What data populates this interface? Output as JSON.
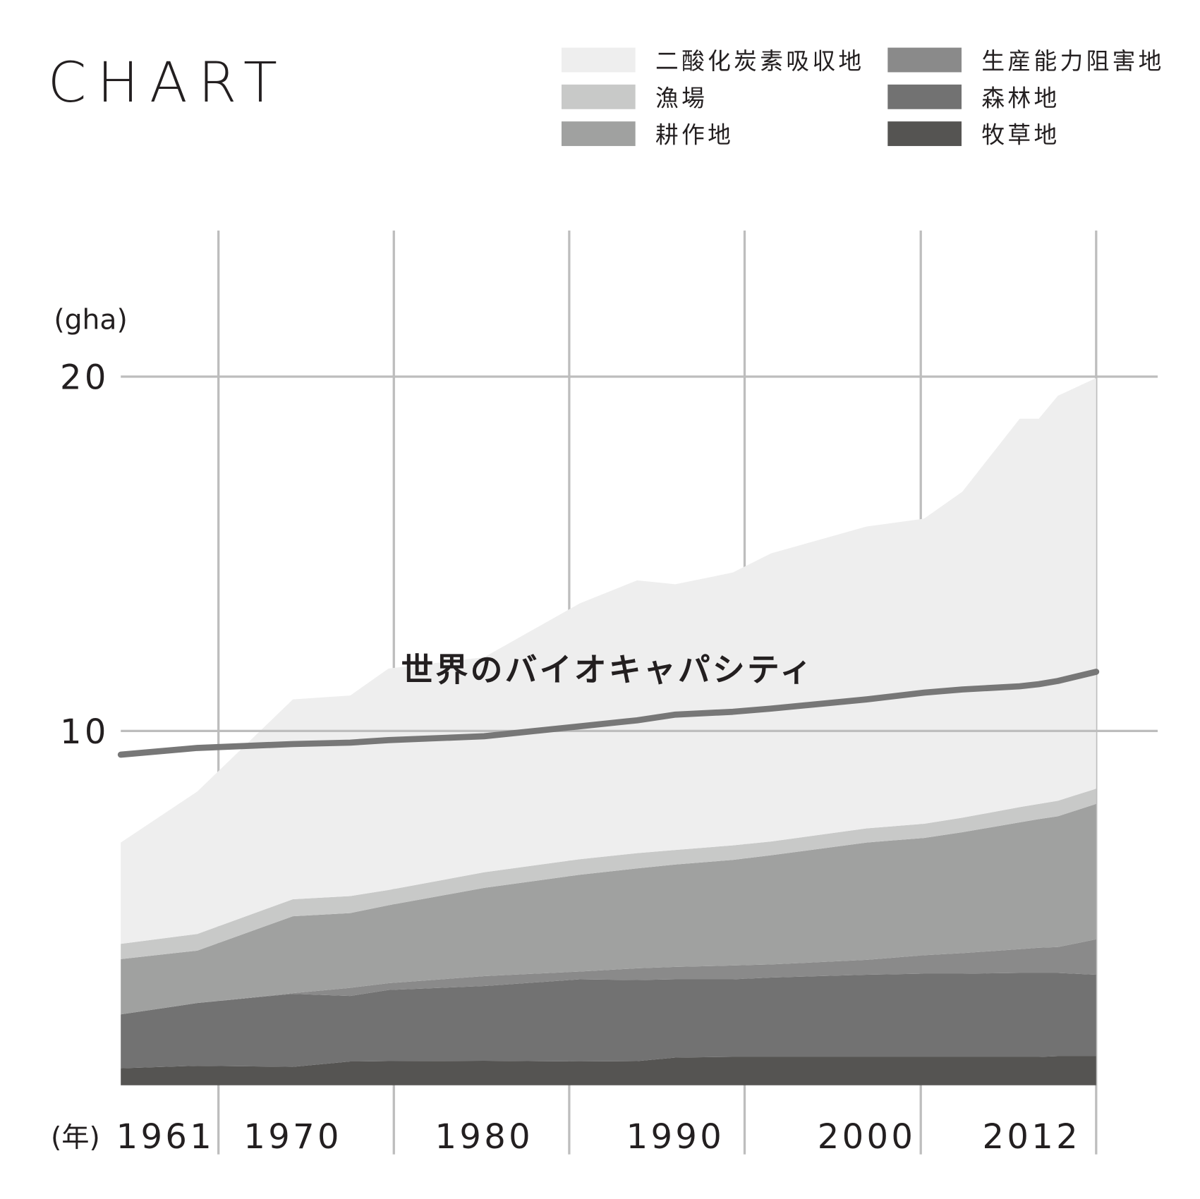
{
  "chart_data": {
    "type": "stacked-area",
    "logo": "CHART",
    "y_unit": "(gha)",
    "x_unit": "(年)",
    "x": [
      1961,
      1965,
      1970,
      1973,
      1975,
      1980,
      1985,
      1988,
      1990,
      1993,
      1995,
      2000,
      2003,
      2005,
      2008,
      2009,
      2010,
      2012
    ],
    "xlim": [
      1961,
      2012
    ],
    "xticks": [
      1961,
      1970,
      1980,
      1990,
      2000,
      2012
    ],
    "ylim": [
      0,
      24
    ],
    "yticks": [
      10,
      20
    ],
    "grid": true,
    "series": [
      {
        "name": "二酸化炭素吸収地",
        "color": "#eeeeee",
        "values": [
          2.86,
          4.02,
          5.64,
          5.66,
          6.25,
          6.07,
          7.22,
          7.7,
          7.5,
          7.7,
          8.13,
          8.52,
          8.61,
          9.2,
          10.96,
          10.87,
          11.43,
          11.59
        ]
      },
      {
        "name": "漁場",
        "color": "#c8c9c8",
        "values": [
          0.43,
          0.47,
          0.48,
          0.48,
          0.43,
          0.44,
          0.44,
          0.43,
          0.41,
          0.41,
          0.39,
          0.4,
          0.4,
          0.41,
          0.43,
          0.43,
          0.44,
          0.43
        ]
      },
      {
        "name": "耕作地",
        "color": "#a0a1a0",
        "values": [
          1.56,
          1.48,
          2.17,
          2.11,
          2.2,
          2.49,
          2.73,
          2.82,
          2.89,
          2.98,
          3.08,
          3.31,
          3.31,
          3.41,
          3.58,
          3.63,
          3.69,
          3.82
        ]
      },
      {
        "name": "生産能力阻害地",
        "color": "#8a8a8a",
        "values": [
          0,
          0,
          0.02,
          0.23,
          0.19,
          0.28,
          0.22,
          0.33,
          0.35,
          0.39,
          0.37,
          0.42,
          0.52,
          0.58,
          0.67,
          0.71,
          0.73,
          1.0
        ]
      },
      {
        "name": "森林地",
        "color": "#727272",
        "values": [
          1.52,
          1.77,
          2.06,
          1.85,
          2.01,
          2.11,
          2.32,
          2.29,
          2.21,
          2.19,
          2.24,
          2.32,
          2.35,
          2.35,
          2.37,
          2.37,
          2.35,
          2.3
        ]
      },
      {
        "name": "牧草地",
        "color": "#555452",
        "values": [
          0.48,
          0.55,
          0.52,
          0.67,
          0.68,
          0.69,
          0.67,
          0.68,
          0.78,
          0.8,
          0.8,
          0.8,
          0.8,
          0.8,
          0.8,
          0.8,
          0.82,
          0.82
        ]
      }
    ],
    "line_series": {
      "name": "世界のバイオキャパシティ",
      "color": "#777777",
      "values": [
        9.33,
        9.52,
        9.63,
        9.67,
        9.74,
        9.85,
        10.13,
        10.3,
        10.46,
        10.54,
        10.63,
        10.89,
        11.08,
        11.17,
        11.26,
        11.32,
        11.41,
        11.67
      ]
    }
  }
}
